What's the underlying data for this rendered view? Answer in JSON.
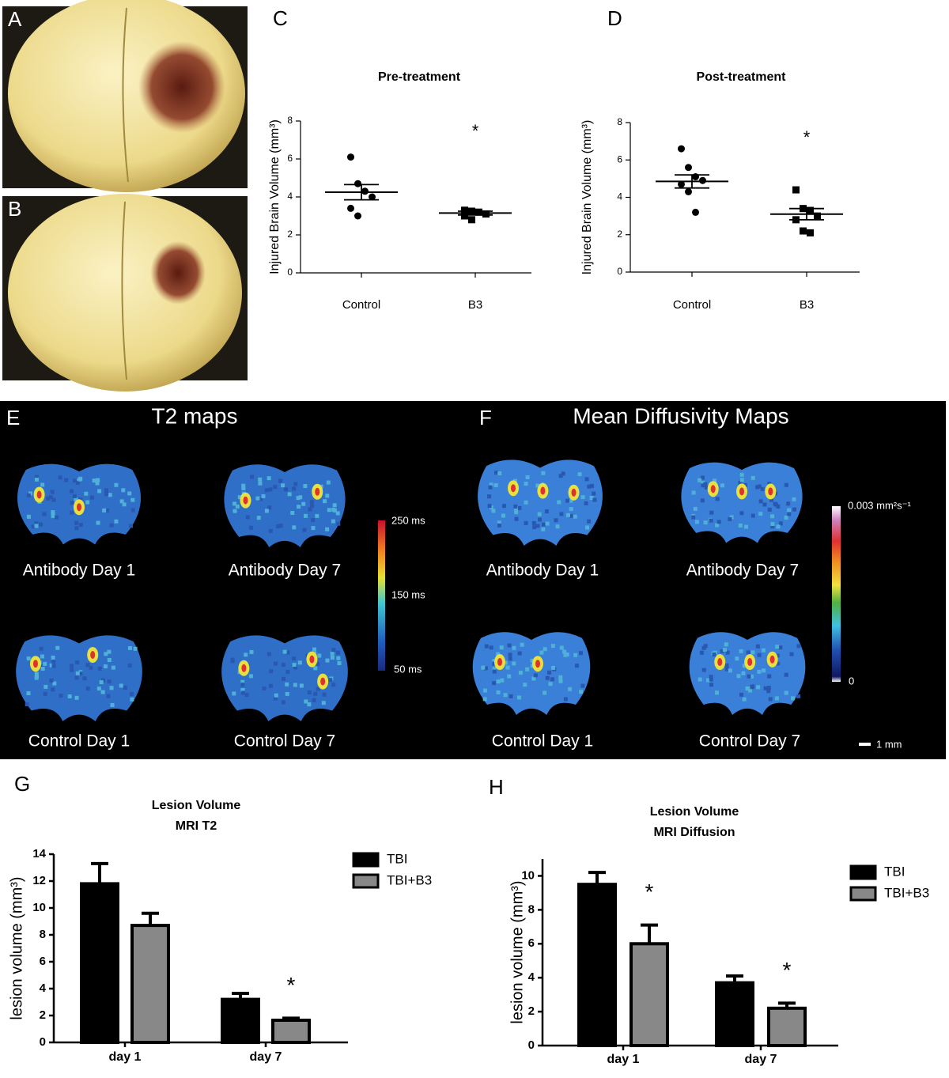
{
  "photos": {
    "labels": [
      "A",
      "B"
    ]
  },
  "mri": {
    "t2": {
      "label": "E",
      "title": "T2 maps",
      "images": [
        "Antibody Day 1",
        "Antibody Day 7",
        "Control Day 1",
        "Control Day 7"
      ],
      "colorbar": [
        "250 ms",
        "150 ms",
        "50 ms"
      ]
    },
    "md": {
      "label": "F",
      "title": "Mean Diffusivity Maps",
      "images": [
        "Antibody Day 1",
        "Antibody Day 7",
        "Control Day 1",
        "Control Day 7"
      ],
      "colorbar": [
        "0.003 mm²s⁻¹",
        "0"
      ],
      "scale_bar": "1 mm"
    }
  },
  "chart_data": [
    {
      "type": "dotplot",
      "panel_label": "C",
      "title": "Pre-treatment",
      "y_label": "Injured Brain Volume (mm³)",
      "categories": [
        "Control",
        "B3"
      ],
      "markers": [
        "circle",
        "square"
      ],
      "values": [
        [
          6.1,
          4.7,
          4.3,
          4.0,
          3.4,
          3.0
        ],
        [
          3.3,
          3.25,
          3.2,
          3.1,
          3.0,
          2.8
        ]
      ],
      "means": [
        4.25,
        3.15
      ],
      "errors": [
        0.4,
        0.1
      ],
      "annotations": [
        null,
        "*"
      ],
      "ylim": [
        0,
        8
      ],
      "yticks": [
        0,
        2,
        4,
        6,
        8
      ]
    },
    {
      "type": "dotplot",
      "panel_label": "D",
      "title": "Post-treatment",
      "y_label": "Injured Brain Volume (mm³)",
      "categories": [
        "Control",
        "B3"
      ],
      "markers": [
        "circle",
        "square"
      ],
      "values": [
        [
          6.6,
          5.6,
          5.1,
          4.9,
          4.7,
          4.3,
          3.2
        ],
        [
          4.4,
          3.4,
          3.3,
          3.0,
          2.8,
          2.2,
          2.1
        ]
      ],
      "means": [
        4.85,
        3.1
      ],
      "errors": [
        0.35,
        0.3
      ],
      "annotations": [
        null,
        "*"
      ],
      "ylim": [
        0,
        8
      ],
      "yticks": [
        0,
        2,
        4,
        6,
        8
      ]
    },
    {
      "type": "bar",
      "panel_label": "G",
      "title": "Lesion Volume",
      "subtitle": "MRI T2",
      "y_label": "lesion volume (mm³)",
      "categories": [
        "day 1",
        "day 7"
      ],
      "series": [
        {
          "name": "TBI",
          "color": "#000000",
          "values": [
            11.8,
            3.2
          ],
          "errors": [
            1.5,
            0.45
          ],
          "annotations": [
            null,
            null
          ]
        },
        {
          "name": "TBI+B3",
          "color": "#888888",
          "values": [
            8.7,
            1.65
          ],
          "errors": [
            0.9,
            0.15
          ],
          "annotations": [
            null,
            "*"
          ]
        }
      ],
      "ylim": [
        0,
        14
      ],
      "yticks": [
        0,
        2,
        4,
        6,
        8,
        10,
        12,
        14
      ]
    },
    {
      "type": "bar",
      "panel_label": "H",
      "title": "Lesion Volume",
      "subtitle": "MRI Diffusion",
      "y_label": "lesion volume (mm³)",
      "categories": [
        "day 1",
        "day 7"
      ],
      "series": [
        {
          "name": "TBI",
          "color": "#000000",
          "values": [
            9.5,
            3.7
          ],
          "errors": [
            0.7,
            0.4
          ],
          "annotations": [
            null,
            null
          ]
        },
        {
          "name": "TBI+B3",
          "color": "#888888",
          "values": [
            6.0,
            2.2
          ],
          "errors": [
            1.1,
            0.3
          ],
          "annotations": [
            "*",
            "*"
          ]
        }
      ],
      "ylim": [
        0,
        11
      ],
      "yticks": [
        0,
        2,
        4,
        6,
        8,
        10
      ]
    }
  ]
}
